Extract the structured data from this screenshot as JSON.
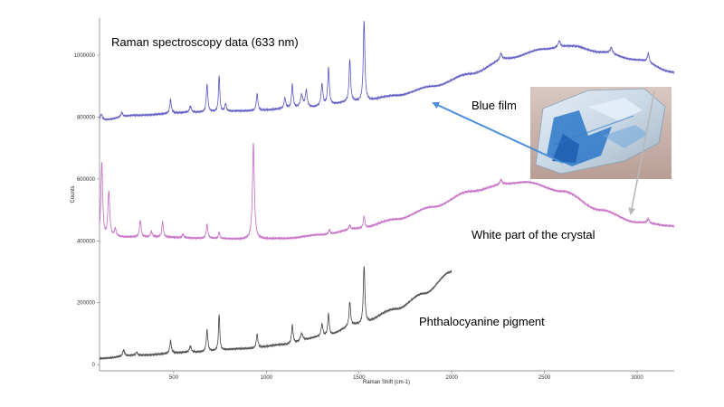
{
  "chart_data": {
    "type": "line",
    "title": "Raman spectroscopy data (633 nm)",
    "xlabel": "Raman Shift (cm-1)",
    "ylabel": "Counts",
    "xlim": [
      100,
      3200
    ],
    "ylim": [
      -20000,
      1120000
    ],
    "x_ticks": [
      500,
      1000,
      1500,
      2000,
      2500,
      3000
    ],
    "y_ticks": [
      0,
      200000,
      400000,
      600000,
      800000,
      1000000
    ],
    "grid": false,
    "annotations": {
      "blue_film": "Blue film",
      "white_part": "White part of the crystal",
      "pigment": "Phthalocyanine pigment"
    },
    "series": [
      {
        "key": "blue",
        "color": "#5a55c0",
        "x_range": [
          100,
          3200
        ],
        "baseline": [
          [
            100,
            790000
          ],
          [
            300,
            806000
          ],
          [
            600,
            815000
          ],
          [
            900,
            820000
          ],
          [
            1200,
            830000
          ],
          [
            1500,
            850000
          ],
          [
            1700,
            870000
          ],
          [
            1900,
            900000
          ],
          [
            2100,
            940000
          ],
          [
            2300,
            990000
          ],
          [
            2500,
            1020000
          ],
          [
            2650,
            1030000
          ],
          [
            2800,
            1010000
          ],
          [
            3000,
            985000
          ],
          [
            3200,
            945000
          ]
        ],
        "peaks": [
          [
            110,
            20000,
            6
          ],
          [
            220,
            15000,
            6
          ],
          [
            483,
            45000,
            5
          ],
          [
            590,
            20000,
            6
          ],
          [
            680,
            90000,
            5
          ],
          [
            745,
            120000,
            4
          ],
          [
            780,
            25000,
            5
          ],
          [
            950,
            55000,
            5
          ],
          [
            1100,
            35000,
            5
          ],
          [
            1140,
            75000,
            5
          ],
          [
            1190,
            40000,
            8
          ],
          [
            1215,
            55000,
            6
          ],
          [
            1300,
            70000,
            6
          ],
          [
            1335,
            120000,
            5
          ],
          [
            1450,
            140000,
            5
          ],
          [
            1527,
            265000,
            5
          ],
          [
            2265,
            20000,
            6
          ],
          [
            2580,
            20000,
            8
          ],
          [
            2860,
            20000,
            8
          ],
          [
            3060,
            30000,
            6
          ]
        ]
      },
      {
        "key": "purple",
        "color": "#c46ac4",
        "x_range": [
          100,
          3200
        ],
        "baseline": [
          [
            100,
            400000
          ],
          [
            200,
            412000
          ],
          [
            400,
            412000
          ],
          [
            700,
            408000
          ],
          [
            900,
            405000
          ],
          [
            1100,
            408000
          ],
          [
            1300,
            420000
          ],
          [
            1500,
            440000
          ],
          [
            1700,
            470000
          ],
          [
            1900,
            510000
          ],
          [
            2100,
            560000
          ],
          [
            2300,
            585000
          ],
          [
            2400,
            590000
          ],
          [
            2600,
            560000
          ],
          [
            2800,
            500000
          ],
          [
            3000,
            460000
          ],
          [
            3200,
            448000
          ]
        ],
        "peaks": [
          [
            112,
            250000,
            6
          ],
          [
            150,
            150000,
            6
          ],
          [
            185,
            25000,
            6
          ],
          [
            320,
            55000,
            5
          ],
          [
            380,
            18000,
            6
          ],
          [
            440,
            50000,
            5
          ],
          [
            550,
            12000,
            5
          ],
          [
            680,
            45000,
            5
          ],
          [
            745,
            20000,
            4
          ],
          [
            930,
            310000,
            6
          ],
          [
            1340,
            15000,
            5
          ],
          [
            1450,
            15000,
            5
          ],
          [
            1527,
            40000,
            5
          ],
          [
            2265,
            15000,
            6
          ],
          [
            3060,
            15000,
            6
          ]
        ]
      },
      {
        "key": "black",
        "color": "#444444",
        "x_range": [
          100,
          2000
        ],
        "baseline": [
          [
            100,
            20000
          ],
          [
            300,
            30000
          ],
          [
            600,
            40000
          ],
          [
            900,
            52000
          ],
          [
            1100,
            65000
          ],
          [
            1300,
            90000
          ],
          [
            1500,
            130000
          ],
          [
            1700,
            180000
          ],
          [
            1850,
            230000
          ],
          [
            2000,
            300000
          ]
        ],
        "peaks": [
          [
            230,
            20000,
            6
          ],
          [
            300,
            10000,
            6
          ],
          [
            483,
            40000,
            5
          ],
          [
            590,
            20000,
            6
          ],
          [
            680,
            70000,
            5
          ],
          [
            745,
            120000,
            4
          ],
          [
            950,
            45000,
            5
          ],
          [
            1140,
            60000,
            5
          ],
          [
            1190,
            25000,
            8
          ],
          [
            1300,
            40000,
            6
          ],
          [
            1335,
            70000,
            5
          ],
          [
            1450,
            80000,
            5
          ],
          [
            1527,
            190000,
            5
          ]
        ]
      }
    ]
  }
}
